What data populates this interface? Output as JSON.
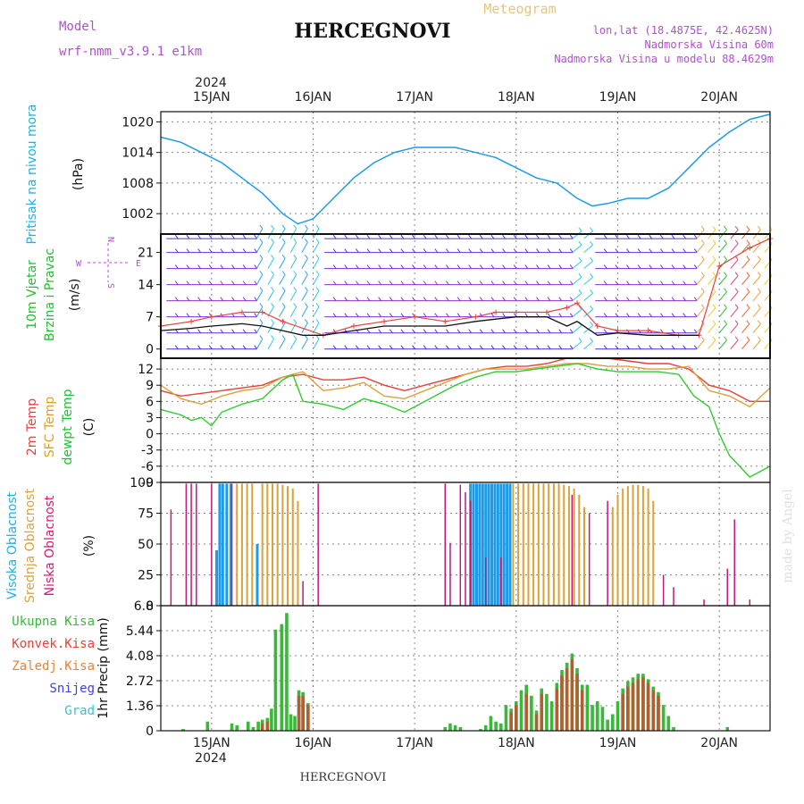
{
  "header": {
    "model_label": "Model",
    "model_name": "wrf-nmm_v3.9.1 e1km",
    "title": "HERCEGNOVI",
    "meteogram": "Meteogram",
    "lonlat": "lon,lat (18.4875E, 42.4625N)",
    "elevation": "Nadmorska Visina 60m",
    "model_elevation": "Nadmorska Visina u modelu 88.4629m",
    "footer": "HERCEGNOVI",
    "credit": "made by Angel",
    "year": "2024"
  },
  "colors": {
    "pressure": "#1e9be6",
    "temp2m": "#e8403a",
    "sfc": "#d9a23a",
    "dewpt": "#2ecc2e",
    "visoka": "#1e9be6",
    "srednja": "#d9a23a",
    "niska": "#c0187c",
    "ukupna": "#3ab83a",
    "konvek": "#e8403a",
    "zaledj": "#f08030",
    "snijeg": "#4040e0",
    "grad": "#30c8c8",
    "wind_label": "#20c030",
    "pressure_label": "#22b0e0",
    "cloud_label_vis": "#22b0e0",
    "cloud_label_sred": "#d9a23a",
    "cloud_label_nis": "#e01870",
    "temp_label_2m": "#e8403a",
    "temp_label_sfc": "#e0a020",
    "temp_label_dew": "#20c030",
    "purple": "#b050d0"
  },
  "chart_data": [
    {
      "type": "line",
      "panel": "pressure",
      "ylabel_left": "Pritisak na nivou mora",
      "unit": "(hPa)",
      "x_days": [
        "15JAN",
        "16JAN",
        "17JAN",
        "18JAN",
        "19JAN",
        "20JAN"
      ],
      "yticks": [
        "1002",
        "1008",
        "1014",
        "1020"
      ],
      "ylim": [
        998,
        1022
      ],
      "series": [
        {
          "x": [
            14.5,
            14.7,
            14.9,
            15.1,
            15.3,
            15.5,
            15.7,
            15.85,
            16.0,
            16.2,
            16.4,
            16.6,
            16.8,
            17.0,
            17.2,
            17.4,
            17.6,
            17.8,
            18.0,
            18.2,
            18.4,
            18.6,
            18.75,
            18.9,
            19.1,
            19.3,
            19.5,
            19.7,
            19.9,
            20.1,
            20.3,
            20.5
          ],
          "y": [
            1017,
            1016,
            1014,
            1012,
            1009,
            1006,
            1002,
            1000,
            1001,
            1005,
            1009,
            1012,
            1014,
            1015,
            1015,
            1015,
            1014,
            1013,
            1011,
            1009,
            1008,
            1005,
            1003.5,
            1004,
            1005,
            1005,
            1007,
            1011,
            1015,
            1018,
            1020.5,
            1021.5
          ]
        }
      ]
    },
    {
      "type": "line",
      "panel": "wind",
      "ylabel_left": [
        "10m Vjetar",
        "Brzina i Pravac"
      ],
      "unit": "(m/s)",
      "compass": [
        "N",
        "W",
        "E",
        "S"
      ],
      "yticks": [
        "0",
        "7",
        "14",
        "21"
      ],
      "ylim": [
        -2,
        25
      ],
      "series": [
        {
          "name": "speed",
          "x": [
            14.5,
            14.8,
            15.0,
            15.3,
            15.5,
            15.7,
            15.9,
            16.1,
            16.4,
            16.7,
            17.0,
            17.3,
            17.6,
            17.8,
            18.0,
            18.3,
            18.5,
            18.6,
            18.8,
            19.0,
            19.3,
            19.6,
            19.8
          ],
          "y": [
            4,
            4.5,
            5,
            5.5,
            5,
            4,
            3,
            3,
            4,
            5,
            5,
            5,
            6,
            6.5,
            7,
            7,
            5,
            6,
            3,
            3.5,
            3,
            3,
            3
          ]
        },
        {
          "name": "gust",
          "x": [
            14.5,
            14.8,
            15.0,
            15.3,
            15.5,
            15.7,
            16.1,
            16.4,
            16.7,
            17.0,
            17.3,
            17.6,
            17.8,
            18.0,
            18.3,
            18.5,
            18.6,
            18.8,
            19.0,
            19.3,
            19.6,
            19.8,
            20.0,
            20.3,
            20.5
          ],
          "y": [
            5,
            6,
            7,
            8,
            8,
            6,
            3,
            5,
            6,
            7,
            6,
            7,
            8,
            8,
            8,
            9,
            10,
            5,
            4,
            4,
            3,
            3,
            18,
            22,
            24
          ]
        }
      ]
    },
    {
      "type": "line",
      "panel": "temperature",
      "ylabel_left": [
        "2m Temp",
        "SFC Temp",
        "dewpt Temp"
      ],
      "unit": "(C)",
      "yticks": [
        "-9",
        "-6",
        "-3",
        "0",
        "3",
        "6",
        "9",
        "12"
      ],
      "ylim": [
        -9,
        14
      ],
      "series": [
        {
          "name": "2m Temp",
          "x": [
            14.5,
            14.7,
            14.9,
            15.1,
            15.3,
            15.5,
            15.7,
            15.9,
            16.1,
            16.3,
            16.5,
            16.7,
            16.9,
            17.1,
            17.3,
            17.5,
            17.7,
            17.9,
            18.1,
            18.3,
            18.5,
            18.7,
            18.9,
            19.1,
            19.3,
            19.5,
            19.7,
            19.9,
            20.1,
            20.3,
            20.5
          ],
          "y": [
            8,
            7,
            7.5,
            8,
            8.5,
            9,
            10.5,
            11,
            10,
            10,
            10.5,
            9,
            8,
            9,
            10,
            11,
            12,
            12.5,
            12.5,
            13,
            14,
            14,
            14,
            13.5,
            13,
            13,
            12,
            9,
            8,
            6,
            6
          ]
        },
        {
          "name": "SFC Temp",
          "x": [
            14.5,
            14.7,
            14.9,
            15.1,
            15.3,
            15.5,
            15.7,
            15.9,
            16.1,
            16.3,
            16.5,
            16.7,
            16.9,
            17.1,
            17.3,
            17.5,
            17.7,
            17.9,
            18.1,
            18.3,
            18.5,
            18.7,
            18.9,
            19.1,
            19.3,
            19.5,
            19.7,
            19.9,
            20.1,
            20.3,
            20.5
          ],
          "y": [
            9,
            6.5,
            5.5,
            7,
            8,
            8.5,
            10.5,
            11.5,
            8,
            8.5,
            9.5,
            7,
            6.5,
            8,
            9.5,
            11,
            12,
            12,
            12,
            12.5,
            13,
            13,
            12.5,
            12.5,
            12,
            12,
            12.5,
            8,
            7,
            5,
            8.5
          ]
        },
        {
          "name": "dewpt Temp",
          "x": [
            14.5,
            14.7,
            14.8,
            14.9,
            15.0,
            15.1,
            15.3,
            15.5,
            15.7,
            15.8,
            15.9,
            16.1,
            16.3,
            16.5,
            16.7,
            16.9,
            17.0,
            17.2,
            17.4,
            17.6,
            17.8,
            18.0,
            18.2,
            18.4,
            18.6,
            18.8,
            19.0,
            19.2,
            19.4,
            19.6,
            19.75,
            19.9,
            20.0,
            20.1,
            20.2,
            20.3,
            20.5
          ],
          "y": [
            4.5,
            3.5,
            2.5,
            3,
            1.5,
            4,
            5.5,
            6.5,
            10,
            11,
            6,
            5.5,
            4.5,
            6.5,
            5.5,
            4,
            5,
            7,
            9,
            10.5,
            11.5,
            11.5,
            12,
            12.5,
            13,
            12,
            11.5,
            11.5,
            11.5,
            11,
            7,
            5,
            0,
            -4,
            -6,
            -8,
            -6
          ]
        }
      ]
    },
    {
      "type": "bar",
      "panel": "clouds",
      "ylabel_left": [
        "Visoka Oblacnost",
        "Srednja Oblacnost",
        "Niska Oblacnost"
      ],
      "unit": "(%)",
      "yticks": [
        "0",
        "25",
        "50",
        "75",
        "100"
      ],
      "ylim": [
        0,
        100
      ],
      "series": [
        {
          "name": "Visoka Oblacnost",
          "x": [
            15.05,
            15.08,
            15.11,
            15.15,
            15.19,
            15.45,
            17.55,
            17.58,
            17.61,
            17.64,
            17.67,
            17.7,
            17.73,
            17.76,
            17.79,
            17.82,
            17.85,
            17.88,
            17.91,
            17.94
          ],
          "values": [
            45,
            99,
            99,
            99,
            99,
            50,
            99,
            99,
            99,
            99,
            99,
            99,
            99,
            99,
            99,
            99,
            99,
            99,
            99,
            99
          ]
        },
        {
          "name": "Srednja Oblacnost",
          "x": [
            15.25,
            15.3,
            15.35,
            15.4,
            15.5,
            15.55,
            15.6,
            15.65,
            15.7,
            15.75,
            15.8,
            15.85,
            17.97,
            18.02,
            18.07,
            18.12,
            18.17,
            18.22,
            18.27,
            18.32,
            18.37,
            18.42,
            18.47,
            18.52,
            18.57,
            18.62,
            18.67,
            18.95,
            19.0,
            19.05,
            19.1,
            19.15,
            19.2,
            19.25,
            19.3,
            19.35
          ],
          "values": [
            99,
            99,
            99,
            99,
            99,
            99,
            99,
            99,
            98,
            97,
            95,
            85,
            99,
            99,
            99,
            99,
            99,
            99,
            99,
            99,
            99,
            99,
            98,
            97,
            95,
            90,
            80,
            80,
            90,
            95,
            97,
            98,
            98,
            97,
            95,
            85
          ]
        },
        {
          "name": "Niska Oblacnost",
          "x": [
            14.6,
            14.75,
            14.8,
            14.85,
            15.0,
            15.2,
            15.9,
            16.05,
            17.3,
            17.35,
            17.45,
            17.5,
            17.55,
            17.7,
            17.85,
            18.55,
            18.72,
            18.9,
            19.45,
            19.55,
            19.85,
            20.08,
            20.15,
            20.3
          ],
          "values": [
            78,
            99,
            99,
            99,
            99,
            99,
            20,
            99,
            99,
            51,
            98,
            92,
            85,
            39,
            39,
            90,
            75,
            85,
            25,
            15,
            5,
            30,
            70,
            5
          ]
        }
      ]
    },
    {
      "type": "bar",
      "panel": "precipitation",
      "ylabel_left": [
        "Ukupna Kisa",
        "Konvek.Kisa",
        "Zaledj.Kisa",
        "Snijeg",
        "Grad"
      ],
      "unit": "1hr Precip (mm)",
      "yticks": [
        "0",
        "1.36",
        "2.72",
        "4.08",
        "5.44",
        "6.8"
      ],
      "ylim": [
        0,
        6.8
      ],
      "series": [
        {
          "name": "Ukupna Kisa",
          "x": [
            14.72,
            14.96,
            15.2,
            15.25,
            15.36,
            15.41,
            15.46,
            15.5,
            15.55,
            15.59,
            15.63,
            15.69,
            15.74,
            15.78,
            15.82,
            15.86,
            15.9,
            15.95,
            17.3,
            17.35,
            17.4,
            17.45,
            17.65,
            17.7,
            17.75,
            17.8,
            17.85,
            17.9,
            17.95,
            18.0,
            18.05,
            18.1,
            18.15,
            18.2,
            18.25,
            18.3,
            18.35,
            18.4,
            18.45,
            18.5,
            18.55,
            18.6,
            18.65,
            18.7,
            18.75,
            18.8,
            18.85,
            18.9,
            18.95,
            19.0,
            19.05,
            19.1,
            19.15,
            19.2,
            19.25,
            19.3,
            19.35,
            19.4,
            19.45,
            19.5,
            19.55,
            20.08
          ],
          "values": [
            0.1,
            0.5,
            0.4,
            0.3,
            0.5,
            0.2,
            0.5,
            0.6,
            0.7,
            1.2,
            5.5,
            5.8,
            6.4,
            0.9,
            0.8,
            2.2,
            2.1,
            1.5,
            0.2,
            0.4,
            0.3,
            0.2,
            0.1,
            0.3,
            0.8,
            0.5,
            0.4,
            1.4,
            1.2,
            1.6,
            2.2,
            2.5,
            1.9,
            1.1,
            2.3,
            2.0,
            1.6,
            2.6,
            3.3,
            3.7,
            4.2,
            3.4,
            2.5,
            2.5,
            1.4,
            1.6,
            1.3,
            0.6,
            0.9,
            1.6,
            2.3,
            2.7,
            2.9,
            3.1,
            3.1,
            2.8,
            2.4,
            2.1,
            1.4,
            0.8,
            0.2,
            0.2
          ]
        },
        {
          "name": "Konvek.Kisa",
          "x": [
            15.5,
            15.55,
            15.86,
            15.9,
            15.95,
            17.95,
            18.0,
            18.1,
            18.2,
            18.25,
            18.4,
            18.45,
            18.5,
            18.55,
            18.6,
            18.65,
            19.05,
            19.1,
            19.15,
            19.2,
            19.25,
            19.3,
            19.35,
            19.4
          ],
          "values": [
            0.4,
            0.5,
            1.9,
            1.9,
            1.4,
            1.0,
            1.4,
            2.0,
            0.9,
            2.0,
            2.3,
            3.0,
            3.4,
            3.9,
            3.1,
            2.2,
            2.0,
            2.4,
            2.6,
            2.8,
            2.9,
            2.6,
            2.2,
            1.9
          ]
        }
      ]
    }
  ]
}
